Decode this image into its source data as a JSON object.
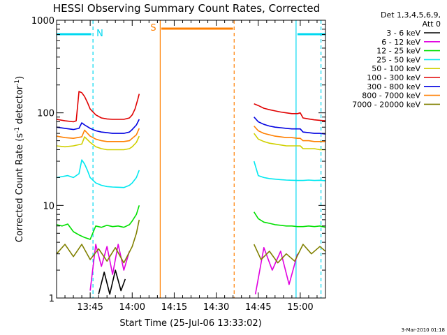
{
  "chart_data": {
    "type": "line",
    "title": "HESSI Observing Summary Count Rates, Corrected",
    "xlabel": "Start Time (25-Jul-06 13:33:02)",
    "ylabel": "Corrected Count Rate (s",
    "ylabel_sup1": "-1",
    "ylabel_mid": " detector",
    "ylabel_sup2": "-1",
    "ylabel_end": ")",
    "yscale": "log",
    "ylim": [
      1,
      1000
    ],
    "yticks": [
      "1",
      "10",
      "100",
      "1000"
    ],
    "xlim_minutes": [
      0,
      96
    ],
    "xticks": [
      {
        "m": 12,
        "label": "13:45"
      },
      {
        "m": 27,
        "label": "14:00"
      },
      {
        "m": 42,
        "label": "14:15"
      },
      {
        "m": 57,
        "label": "14:30"
      },
      {
        "m": 72,
        "label": "14:45"
      },
      {
        "m": 87,
        "label": "15:00"
      }
    ],
    "legend_header": [
      "Det 1,3,4,5,6,9,",
      "Att 0"
    ],
    "legend_placement": "right",
    "footer": "3-Mar-2010 01:18",
    "annotations": [
      {
        "m": 13,
        "label": "N",
        "color": "#00d8f0"
      },
      {
        "m": 37,
        "label": "S",
        "color": "#ff7f00"
      }
    ],
    "gaps": [
      [
        34,
        70
      ]
    ],
    "series": [
      {
        "name": "3 - 6 keV",
        "color": "#000000",
        "segments": [
          {
            "x": [
              15,
              17,
              19,
              21,
              23,
              24.5
            ],
            "y": [
              1.1,
              1.9,
              1.1,
              2.0,
              1.2,
              1.6
            ]
          }
        ]
      },
      {
        "name": "6 - 12 keV",
        "color": "#e000e0",
        "segments": [
          {
            "x": [
              12,
              14,
              16,
              18,
              20,
              22,
              24,
              26
            ],
            "y": [
              1.2,
              3.8,
              2.2,
              3.6,
              1.8,
              3.8,
              2.0,
              3.2
            ]
          },
          {
            "x": [
              71,
              74,
              77,
              80,
              83,
              86
            ],
            "y": [
              1.1,
              3.5,
              2.0,
              3.2,
              1.4,
              3.0
            ]
          }
        ]
      },
      {
        "name": "12 - 25 keV",
        "color": "#00e000",
        "segments": [
          {
            "x": [
              0,
              2,
              4,
              6,
              8,
              10,
              12,
              14,
              16,
              18,
              20,
              22,
              24,
              26,
              27,
              28.5,
              29.5
            ],
            "y": [
              6.2,
              6.0,
              6.3,
              5.2,
              4.8,
              4.5,
              4.3,
              6.0,
              5.8,
              6.1,
              5.9,
              6.0,
              5.8,
              6.2,
              6.8,
              8.0,
              10.0
            ]
          },
          {
            "x": [
              70.5,
              72,
              74,
              76,
              78,
              80,
              82,
              84,
              86,
              88,
              90,
              92,
              94,
              96
            ],
            "y": [
              8.5,
              7.2,
              6.6,
              6.4,
              6.2,
              6.1,
              6.0,
              6.0,
              5.9,
              5.9,
              6.0,
              5.9,
              6.0,
              5.8
            ]
          }
        ]
      },
      {
        "name": "25 - 50 keV",
        "color": "#00e8f0",
        "segments": [
          {
            "x": [
              0,
              2,
              4,
              6,
              8,
              9,
              10,
              11,
              12,
              14,
              16,
              18,
              20,
              22,
              24,
              26,
              27,
              28.5,
              29.5
            ],
            "y": [
              20.0,
              20.5,
              21.0,
              20.0,
              22.0,
              31.0,
              28.0,
              24.0,
              20.0,
              17.5,
              16.5,
              16.0,
              15.8,
              15.7,
              15.6,
              16.5,
              17.5,
              20.0,
              24.0
            ]
          },
          {
            "x": [
              70.5,
              72,
              74,
              76,
              78,
              80,
              82,
              84,
              86,
              88,
              90,
              92,
              94,
              96
            ],
            "y": [
              30.0,
              21.0,
              20.0,
              19.5,
              19.2,
              19.0,
              18.8,
              18.7,
              18.6,
              18.6,
              18.8,
              18.6,
              18.7,
              18.5
            ]
          }
        ]
      },
      {
        "name": "50 - 100 keV",
        "color": "#d0d000",
        "segments": [
          {
            "x": [
              0,
              3,
              6,
              9,
              10,
              12,
              14,
              16,
              18,
              20,
              22,
              24,
              26,
              27,
              28.5,
              29.5
            ],
            "y": [
              44.0,
              43.0,
              44.0,
              46.0,
              55.0,
              48.0,
              43.0,
              41.0,
              40.0,
              40.0,
              40.0,
              40.0,
              41.0,
              43.0,
              48.0,
              56.0
            ]
          },
          {
            "x": [
              70.5,
              72,
              74,
              76,
              78,
              80,
              82,
              84,
              86,
              87,
              88,
              90,
              92,
              94,
              96
            ],
            "y": [
              60.0,
              52.0,
              49.0,
              47.0,
              46.0,
              45.0,
              44.0,
              44.0,
              44.0,
              44.0,
              41.0,
              41.0,
              41.0,
              40.0,
              40.0
            ]
          }
        ]
      },
      {
        "name": "100 - 300 keV",
        "color": "#e00000",
        "segments": [
          {
            "x": [
              0,
              3,
              6,
              7,
              8,
              9,
              10,
              11,
              12,
              14,
              16,
              18,
              20,
              22,
              24,
              26,
              27,
              28,
              29,
              29.5
            ],
            "y": [
              85.0,
              82.0,
              80.0,
              82.0,
              170.0,
              165.0,
              150.0,
              130.0,
              110.0,
              95.0,
              88.0,
              86.0,
              85.0,
              85.0,
              85.0,
              88.0,
              95.0,
              110.0,
              140.0,
              160.0
            ]
          },
          {
            "x": [
              70.5,
              72,
              74,
              76,
              78,
              80,
              82,
              84,
              86,
              87,
              88,
              90,
              92,
              94,
              96
            ],
            "y": [
              125.0,
              120.0,
              112.0,
              108.0,
              105.0,
              102.0,
              100.0,
              98.0,
              98.0,
              100.0,
              88.0,
              86.0,
              84.0,
              83.0,
              82.0
            ]
          }
        ]
      },
      {
        "name": "300 - 800 keV",
        "color": "#0000e0",
        "segments": [
          {
            "x": [
              0,
              3,
              6,
              8,
              9,
              10,
              12,
              14,
              16,
              18,
              20,
              22,
              24,
              26,
              27,
              28.5,
              29.5
            ],
            "y": [
              70.0,
              68.0,
              66.0,
              68.0,
              78.0,
              74.0,
              68.0,
              64.0,
              62.0,
              61.0,
              60.0,
              60.0,
              60.0,
              62.0,
              66.0,
              74.0,
              85.0
            ]
          },
          {
            "x": [
              70.5,
              72,
              74,
              76,
              78,
              80,
              82,
              84,
              86,
              87,
              88,
              90,
              92,
              94,
              96
            ],
            "y": [
              90.0,
              80.0,
              75.0,
              72.0,
              70.0,
              69.0,
              68.0,
              67.0,
              67.0,
              67.0,
              62.0,
              61.0,
              60.0,
              60.0,
              59.0
            ]
          }
        ]
      },
      {
        "name": "800 - 7000 keV",
        "color": "#ff7f00",
        "segments": [
          {
            "x": [
              0,
              3,
              6,
              9,
              10,
              12,
              14,
              16,
              18,
              20,
              22,
              24,
              26,
              27,
              28.5,
              29.5
            ],
            "y": [
              56.0,
              54.0,
              53.0,
              55.0,
              65.0,
              56.0,
              52.0,
              50.0,
              49.0,
              49.0,
              49.0,
              49.0,
              50.0,
              53.0,
              58.0,
              68.0
            ]
          },
          {
            "x": [
              70.5,
              72,
              74,
              76,
              78,
              80,
              82,
              84,
              86,
              87,
              88,
              90,
              92,
              94,
              96
            ],
            "y": [
              72.0,
              64.0,
              60.0,
              58.0,
              56.0,
              55.0,
              54.0,
              54.0,
              53.0,
              53.0,
              50.0,
              50.0,
              49.0,
              49.0,
              49.0
            ]
          }
        ]
      },
      {
        "name": "7000 - 20000 keV",
        "color": "#808000",
        "segments": [
          {
            "x": [
              0,
              3,
              6,
              9,
              12,
              15,
              18,
              21,
              24,
              27,
              28.5,
              29.5
            ],
            "y": [
              3.0,
              3.8,
              2.8,
              3.8,
              2.6,
              3.4,
              2.5,
              3.5,
              2.4,
              3.6,
              5.0,
              7.0
            ]
          },
          {
            "x": [
              70.5,
              73,
              76,
              79,
              82,
              85,
              88,
              91,
              94,
              96
            ],
            "y": [
              3.8,
              2.6,
              3.2,
              2.4,
              3.0,
              2.5,
              3.8,
              3.0,
              3.6,
              3.2
            ]
          }
        ]
      }
    ]
  }
}
